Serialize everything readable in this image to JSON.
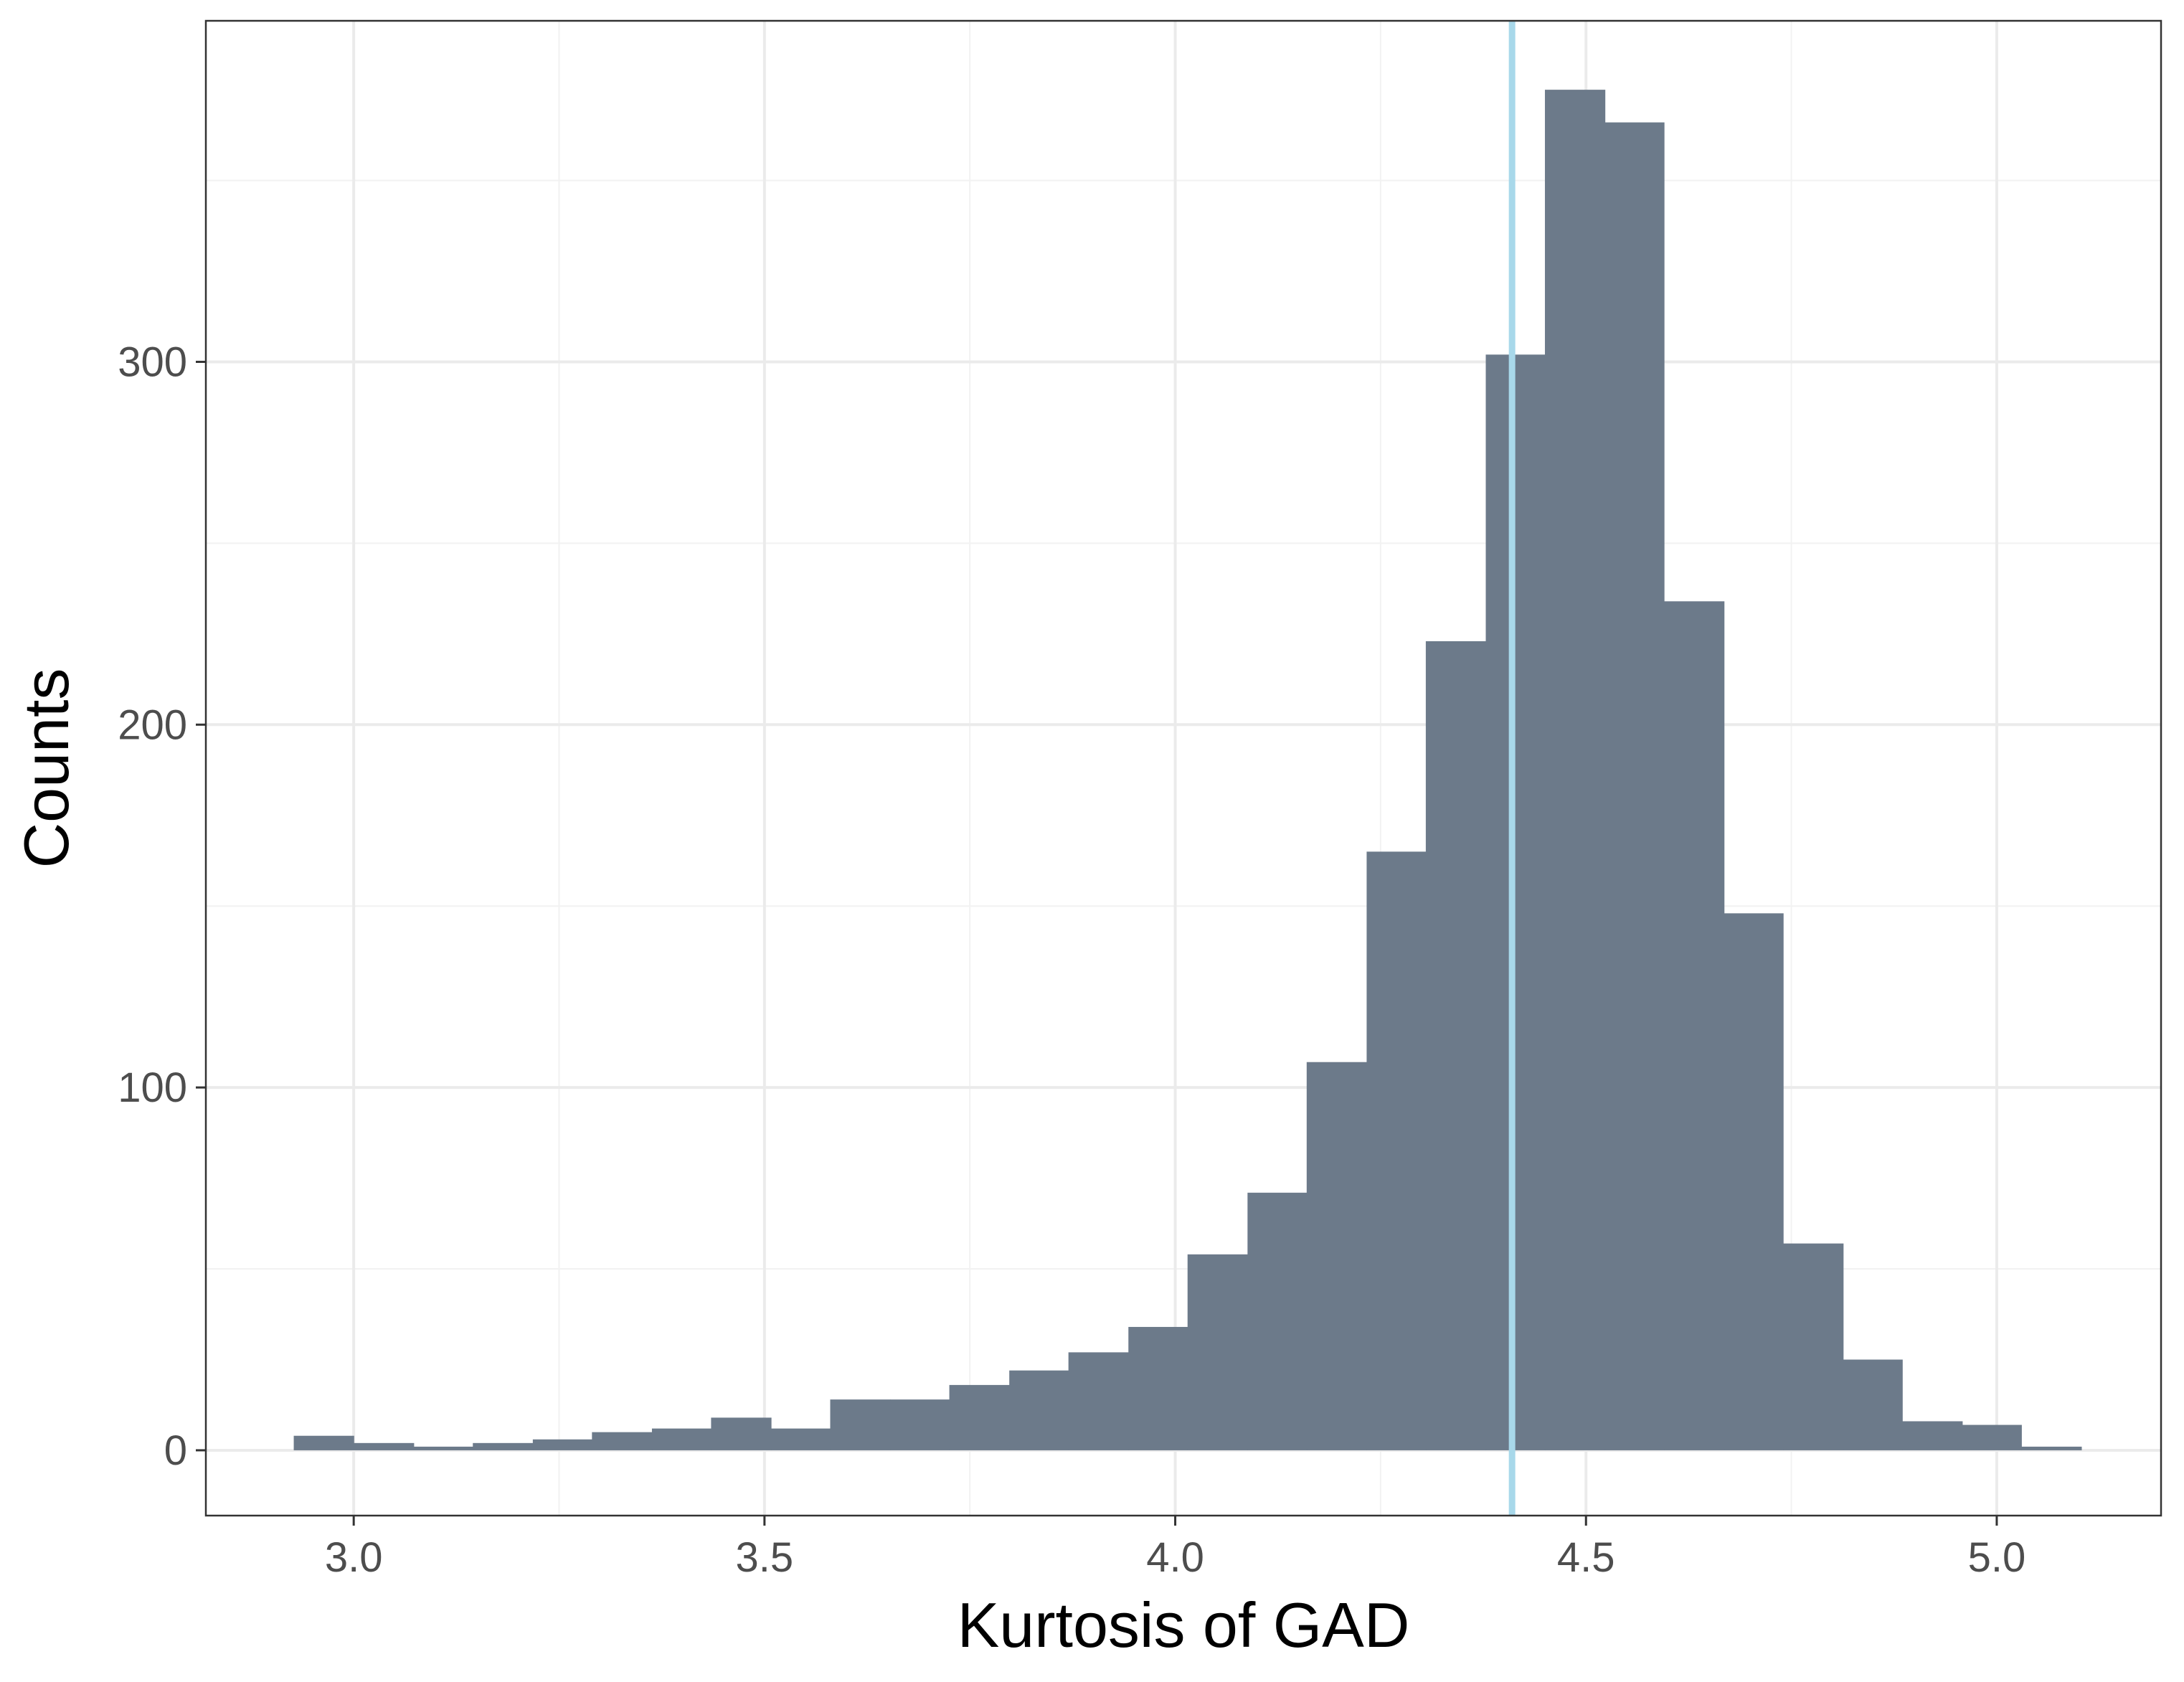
{
  "chart_data": {
    "type": "bar",
    "title": "",
    "xlabel": "Kurtosis of GAD",
    "ylabel": "Counts",
    "xlim": [
      2.82,
      5.2
    ],
    "ylim": [
      -18,
      394
    ],
    "x_ticks": [
      3.0,
      3.5,
      4.0,
      4.5,
      5.0
    ],
    "x_tick_labels": [
      "3.0",
      "3.5",
      "4.0",
      "4.5",
      "5.0"
    ],
    "y_ticks": [
      0,
      100,
      200,
      300
    ],
    "y_tick_labels": [
      "0",
      "100",
      "200",
      "300"
    ],
    "grid": true,
    "legend": "none",
    "bar_color": "#6c7a8a",
    "bins": [
      {
        "x0": 2.927,
        "x1": 3.0,
        "count": 4
      },
      {
        "x0": 3.0,
        "x1": 3.073,
        "count": 2
      },
      {
        "x0": 3.073,
        "x1": 3.145,
        "count": 1
      },
      {
        "x0": 3.145,
        "x1": 3.218,
        "count": 2
      },
      {
        "x0": 3.218,
        "x1": 3.29,
        "count": 3
      },
      {
        "x0": 3.29,
        "x1": 3.363,
        "count": 5
      },
      {
        "x0": 3.363,
        "x1": 3.435,
        "count": 6
      },
      {
        "x0": 3.435,
        "x1": 3.508,
        "count": 9
      },
      {
        "x0": 3.508,
        "x1": 3.58,
        "count": 6
      },
      {
        "x0": 3.58,
        "x1": 3.653,
        "count": 14
      },
      {
        "x0": 3.653,
        "x1": 3.725,
        "count": 14
      },
      {
        "x0": 3.725,
        "x1": 3.798,
        "count": 18
      },
      {
        "x0": 3.798,
        "x1": 3.87,
        "count": 22
      },
      {
        "x0": 3.87,
        "x1": 3.943,
        "count": 27
      },
      {
        "x0": 3.943,
        "x1": 4.015,
        "count": 34
      },
      {
        "x0": 4.015,
        "x1": 4.088,
        "count": 54
      },
      {
        "x0": 4.088,
        "x1": 4.16,
        "count": 71
      },
      {
        "x0": 4.16,
        "x1": 4.233,
        "count": 107
      },
      {
        "x0": 4.233,
        "x1": 4.305,
        "count": 165
      },
      {
        "x0": 4.305,
        "x1": 4.378,
        "count": 223
      },
      {
        "x0": 4.378,
        "x1": 4.45,
        "count": 302
      },
      {
        "x0": 4.45,
        "x1": 4.523,
        "count": 375
      },
      {
        "x0": 4.523,
        "x1": 4.595,
        "count": 366
      },
      {
        "x0": 4.595,
        "x1": 4.668,
        "count": 234
      },
      {
        "x0": 4.668,
        "x1": 4.74,
        "count": 148
      },
      {
        "x0": 4.74,
        "x1": 4.813,
        "count": 57
      },
      {
        "x0": 4.813,
        "x1": 4.885,
        "count": 25
      },
      {
        "x0": 4.885,
        "x1": 4.958,
        "count": 8
      },
      {
        "x0": 4.958,
        "x1": 5.03,
        "count": 7
      },
      {
        "x0": 5.03,
        "x1": 5.103,
        "count": 1
      }
    ],
    "reference_line": {
      "x": 4.41,
      "color": "#a8d8ea"
    }
  }
}
